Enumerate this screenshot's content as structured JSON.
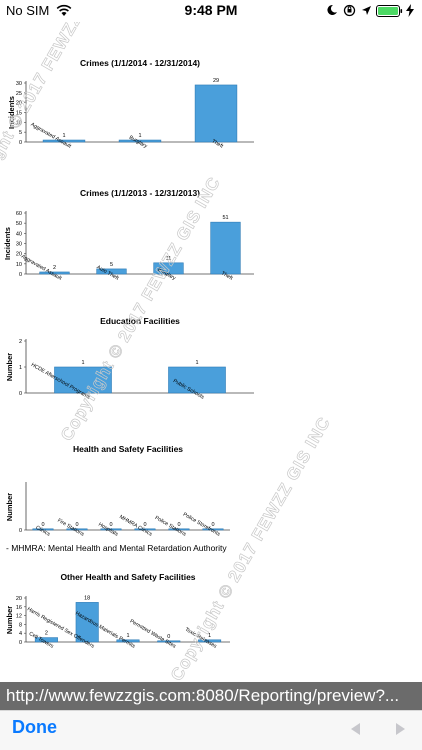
{
  "status_bar": {
    "carrier": "No SIM",
    "time": "9:48 PM",
    "icons": [
      "wifi-icon",
      "do-not-disturb-icon",
      "orientation-lock-icon",
      "location-arrow-icon",
      "battery-icon",
      "charging-bolt-icon"
    ]
  },
  "watermark": "Copyright © 2017 FEWZZ GIS INC",
  "chart_data": [
    {
      "type": "bar",
      "title": "Crimes (1/1/2014 - 12/31/2014)",
      "ylabel": "Incidents",
      "ylim": [
        0,
        30
      ],
      "yticks": [
        0,
        5,
        10,
        15,
        20,
        25,
        30
      ],
      "categories": [
        "Aggravated Assault",
        "Burglary",
        "Theft"
      ],
      "values": [
        1,
        1,
        29
      ]
    },
    {
      "type": "bar",
      "title": "Crimes (1/1/2013 - 12/31/2013)",
      "ylabel": "Incidents",
      "ylim": [
        0,
        60
      ],
      "yticks": [
        0,
        10,
        20,
        30,
        40,
        50,
        60
      ],
      "categories": [
        "Aggravated Assault",
        "Auto Theft",
        "Burglary",
        "Theft"
      ],
      "values": [
        2,
        5,
        11,
        51
      ]
    },
    {
      "type": "bar",
      "title": "Education Facilities",
      "ylabel": "Number",
      "ylim": [
        0,
        2
      ],
      "yticks": [
        0,
        1,
        2
      ],
      "categories": [
        "HCDE Afterschool Programs",
        "Public Schools"
      ],
      "values": [
        1,
        1
      ]
    },
    {
      "type": "bar",
      "title": "Health and Safety Facilities",
      "ylabel": "Number",
      "ylim": [
        0,
        1
      ],
      "yticks": [
        0
      ],
      "categories": [
        "Clinics",
        "Fire Stations",
        "Hospitals",
        "MHMRA Clinics",
        "Police Stations",
        "Police Storefronts"
      ],
      "values": [
        0,
        0,
        0,
        0,
        0,
        0
      ]
    },
    {
      "type": "bar",
      "title": "Other Health and Safety Facilities",
      "ylabel": "Number",
      "ylim": [
        0,
        20
      ],
      "yticks": [
        0,
        4,
        8,
        12,
        16,
        20
      ],
      "categories": [
        "Cell Towers",
        "Harris Registered Sex Offenders",
        "Hazardous Materials Permits",
        "Permitted Waste Sites",
        "Toxic Releases"
      ],
      "values": [
        2,
        18,
        1,
        0,
        1
      ]
    }
  ],
  "footnote": "- MHMRA: Mental Health and Mental Retardation Authority",
  "url_bar": {
    "url": "http://www.fewzzgis.com:8080/Reporting/preview?..."
  },
  "toolbar": {
    "done_label": "Done",
    "back_icon": "back-arrow-icon",
    "forward_icon": "forward-arrow-icon"
  }
}
